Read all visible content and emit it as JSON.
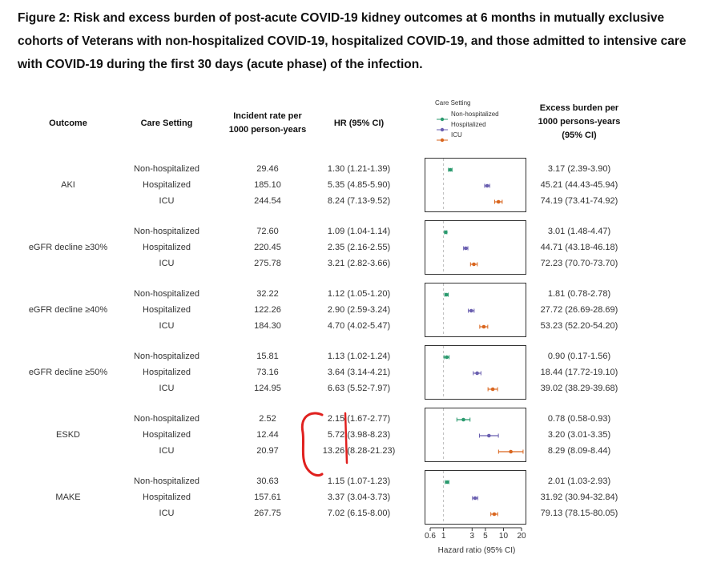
{
  "title": "Figure 2: Risk and excess burden of post-acute COVID-19 kidney outcomes at 6 months in mutually exclusive cohorts of Veterans with non-hospitalized COVID-19, hospitalized COVID-19, and those admitted to intensive care with COVID-19 during the first 30 days (acute phase) of the infection.",
  "headers": {
    "outcome": "Outcome",
    "care_setting": "Care Setting",
    "rate_line1": "Incident rate per",
    "rate_line2": "1000 person-years",
    "hr": "HR (95% CI)",
    "burden_line1": "Excess burden per",
    "burden_line2": "1000 persons-years",
    "burden_line3": "(95% CI)"
  },
  "legend": {
    "title": "Care Setting",
    "items": [
      {
        "label": "Non-hospitalized",
        "color": "#2a9a6e"
      },
      {
        "label": "Hospitalized",
        "color": "#6a5fb0"
      },
      {
        "label": "ICU",
        "color": "#d9661f"
      }
    ]
  },
  "chart_data": {
    "type": "forest",
    "xlabel": "Hazard ratio (95% CI)",
    "x_scale": "log",
    "xlim": [
      0.6,
      20
    ],
    "x_ticks": [
      "0.6",
      "1",
      "3",
      "5",
      "10",
      "20"
    ],
    "x_tick_values": [
      0.6,
      1,
      3,
      5,
      10,
      20
    ],
    "reference_line": 1,
    "series_colors": {
      "Non-hospitalized": "#2a9a6e",
      "Hospitalized": "#6a5fb0",
      "ICU": "#d9661f"
    },
    "outcomes": [
      {
        "outcome": "AKI",
        "rows": [
          {
            "setting": "Non-hospitalized",
            "rate": "29.46",
            "hr_text": "1.30 (1.21-1.39)",
            "hr": 1.3,
            "lo": 1.21,
            "hi": 1.39,
            "burden": "3.17 (2.39-3.90)"
          },
          {
            "setting": "Hospitalized",
            "rate": "185.10",
            "hr_text": "5.35 (4.85-5.90)",
            "hr": 5.35,
            "lo": 4.85,
            "hi": 5.9,
            "burden": "45.21 (44.43-45.94)"
          },
          {
            "setting": "ICU",
            "rate": "244.54",
            "hr_text": "8.24 (7.13-9.52)",
            "hr": 8.24,
            "lo": 7.13,
            "hi": 9.52,
            "burden": "74.19 (73.41-74.92)"
          }
        ]
      },
      {
        "outcome": "eGFR decline ≥30%",
        "rows": [
          {
            "setting": "Non-hospitalized",
            "rate": "72.60",
            "hr_text": "1.09 (1.04-1.14)",
            "hr": 1.09,
            "lo": 1.04,
            "hi": 1.14,
            "burden": "3.01 (1.48-4.47)"
          },
          {
            "setting": "Hospitalized",
            "rate": "220.45",
            "hr_text": "2.35 (2.16-2.55)",
            "hr": 2.35,
            "lo": 2.16,
            "hi": 2.55,
            "burden": "44.71 (43.18-46.18)"
          },
          {
            "setting": "ICU",
            "rate": "275.78",
            "hr_text": "3.21 (2.82-3.66)",
            "hr": 3.21,
            "lo": 2.82,
            "hi": 3.66,
            "burden": "72.23 (70.70-73.70)"
          }
        ]
      },
      {
        "outcome": "eGFR decline ≥40%",
        "rows": [
          {
            "setting": "Non-hospitalized",
            "rate": "32.22",
            "hr_text": "1.12 (1.05-1.20)",
            "hr": 1.12,
            "lo": 1.05,
            "hi": 1.2,
            "burden": "1.81 (0.78-2.78)"
          },
          {
            "setting": "Hospitalized",
            "rate": "122.26",
            "hr_text": "2.90 (2.59-3.24)",
            "hr": 2.9,
            "lo": 2.59,
            "hi": 3.24,
            "burden": "27.72 (26.69-28.69)"
          },
          {
            "setting": "ICU",
            "rate": "184.30",
            "hr_text": "4.70 (4.02-5.47)",
            "hr": 4.7,
            "lo": 4.02,
            "hi": 5.47,
            "burden": "53.23 (52.20-54.20)"
          }
        ]
      },
      {
        "outcome": "eGFR decline ≥50%",
        "rows": [
          {
            "setting": "Non-hospitalized",
            "rate": "15.81",
            "hr_text": "1.13 (1.02-1.24)",
            "hr": 1.13,
            "lo": 1.02,
            "hi": 1.24,
            "burden": "0.90 (0.17-1.56)"
          },
          {
            "setting": "Hospitalized",
            "rate": "73.16",
            "hr_text": "3.64 (3.14-4.21)",
            "hr": 3.64,
            "lo": 3.14,
            "hi": 4.21,
            "burden": "18.44 (17.72-19.10)"
          },
          {
            "setting": "ICU",
            "rate": "124.95",
            "hr_text": "6.63 (5.52-7.97)",
            "hr": 6.63,
            "lo": 5.52,
            "hi": 7.97,
            "burden": "39.02 (38.29-39.68)"
          }
        ]
      },
      {
        "outcome": "ESKD",
        "rows": [
          {
            "setting": "Non-hospitalized",
            "rate": "2.52",
            "hr_text": "2.15 (1.67-2.77)",
            "hr": 2.15,
            "lo": 1.67,
            "hi": 2.77,
            "burden": "0.78 (0.58-0.93)"
          },
          {
            "setting": "Hospitalized",
            "rate": "12.44",
            "hr_text": "5.72 (3.98-8.23)",
            "hr": 5.72,
            "lo": 3.98,
            "hi": 8.23,
            "burden": "3.20 (3.01-3.35)"
          },
          {
            "setting": "ICU",
            "rate": "20.97",
            "hr_text": "13.26 (8.28-21.23)",
            "hr": 13.26,
            "lo": 8.28,
            "hi": 21.23,
            "burden": "8.29 (8.09-8.44)"
          }
        ]
      },
      {
        "outcome": "MAKE",
        "rows": [
          {
            "setting": "Non-hospitalized",
            "rate": "30.63",
            "hr_text": "1.15 (1.07-1.23)",
            "hr": 1.15,
            "lo": 1.07,
            "hi": 1.23,
            "burden": "2.01 (1.03-2.93)"
          },
          {
            "setting": "Hospitalized",
            "rate": "157.61",
            "hr_text": "3.37 (3.04-3.73)",
            "hr": 3.37,
            "lo": 3.04,
            "hi": 3.73,
            "burden": "31.92 (30.94-32.84)"
          },
          {
            "setting": "ICU",
            "rate": "267.75",
            "hr_text": "7.02 (6.15-8.00)",
            "hr": 7.02,
            "lo": 6.15,
            "hi": 8.0,
            "burden": "79.13 (78.15-80.05)"
          }
        ]
      }
    ]
  },
  "annotation": {
    "type": "hand-drawn red bracket",
    "color": "#e0201e"
  }
}
